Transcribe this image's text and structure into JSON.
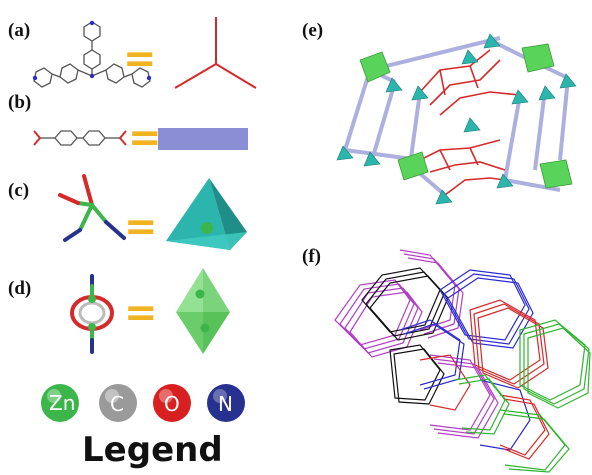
{
  "panels": {
    "a": "(a)",
    "b": "(b)",
    "c": "(c)",
    "d": "(d)",
    "e": "(e)",
    "f": "(f)"
  },
  "equals_symbol": "=",
  "legend": {
    "title": "Legend",
    "atoms": [
      {
        "symbol": "Zn",
        "color": "#3cb54a"
      },
      {
        "symbol": "C",
        "color": "#9a9a9a"
      },
      {
        "symbol": "O",
        "color": "#d82020"
      },
      {
        "symbol": "N",
        "color": "#27318f"
      }
    ]
  },
  "colors": {
    "ligand_red": "#d62a2a",
    "linker_purple": "#8a8ed4",
    "tetra_teal": "#2bb5ad",
    "octa_green": "#5ad35a",
    "net_magenta": "#b23ec6",
    "net_blue": "#2a2ad0",
    "net_green": "#2fb52f",
    "net_black": "#111111"
  }
}
